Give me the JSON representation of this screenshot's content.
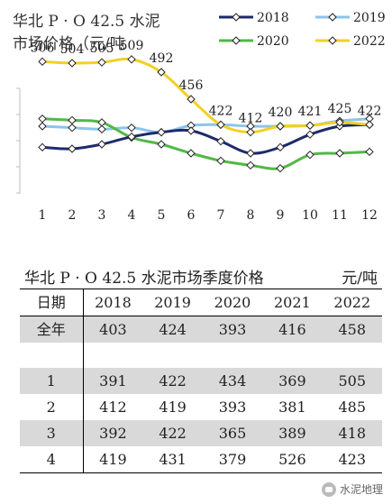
{
  "chart_data": {
    "type": "line",
    "title_line1": "华北 P · O 42.5 水泥",
    "title_line2": "市场价格（元/吨",
    "categories": [
      "1",
      "2",
      "3",
      "4",
      "5",
      "6",
      "7",
      "8",
      "9",
      "10",
      "11",
      "12"
    ],
    "ylim": [
      330,
      540
    ],
    "grid": false,
    "legend_position": "top-right",
    "series": [
      {
        "name": "2018",
        "color": "#1f2a6b",
        "values": [
          392,
          390,
          396,
          406,
          412,
          414,
          400,
          384,
          392,
          409,
          420,
          422
        ]
      },
      {
        "name": "2019",
        "color": "#8ec3ea",
        "values": [
          420,
          418,
          416,
          418,
          412,
          421,
          422,
          420,
          420,
          421,
          427,
          430
        ]
      },
      {
        "name": "2020",
        "color": "#52b847",
        "values": [
          430,
          428,
          425,
          405,
          396,
          384,
          374,
          368,
          364,
          382,
          384,
          386
        ]
      },
      {
        "name": "2022",
        "color": "#f2d024",
        "values": [
          506,
          504,
          505,
          509,
          492,
          456,
          422,
          412,
          420,
          421,
          425,
          422
        ]
      }
    ],
    "data_labels_series": "2022"
  },
  "table": {
    "title": "华北 P · O 42.5 水泥市场季度价格",
    "unit": "元/吨",
    "header": [
      "日期",
      "2018",
      "2019",
      "2020",
      "2021",
      "2022"
    ],
    "annual": [
      "全年",
      "403",
      "424",
      "393",
      "416",
      "458"
    ],
    "rows": [
      [
        "1",
        "391",
        "422",
        "434",
        "369",
        "505"
      ],
      [
        "2",
        "412",
        "419",
        "393",
        "381",
        "485"
      ],
      [
        "3",
        "392",
        "422",
        "365",
        "389",
        "418"
      ],
      [
        "4",
        "419",
        "431",
        "379",
        "526",
        "423"
      ]
    ]
  },
  "watermark": "水泥地理"
}
